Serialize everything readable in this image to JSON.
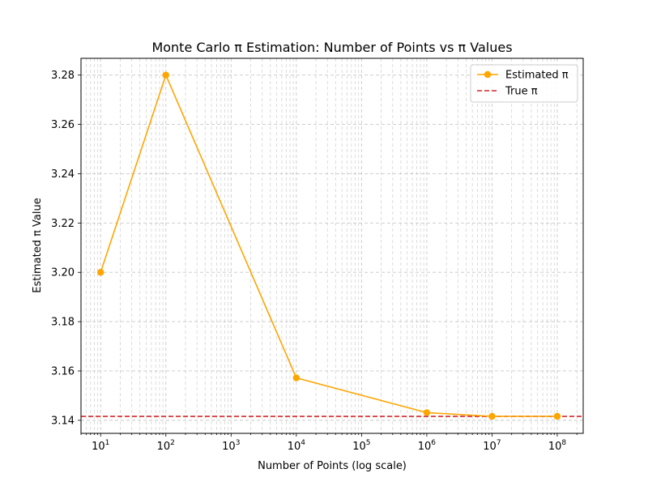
{
  "chart_data": {
    "type": "line",
    "title": "Monte Carlo π Estimation: Number of Points vs π Values",
    "xlabel": "Number of Points (log scale)",
    "ylabel": "Estimated π Value",
    "xscale": "log",
    "xlim": [
      5,
      250000000
    ],
    "ylim": [
      3.1347,
      3.2868
    ],
    "x_ticks": [
      10,
      100,
      1000,
      10000,
      100000,
      1000000,
      10000000,
      100000000
    ],
    "x_tick_bases": [
      "10",
      "10",
      "10",
      "10",
      "10",
      "10",
      "10",
      "10"
    ],
    "x_tick_exponents": [
      "1",
      "2",
      "3",
      "4",
      "5",
      "6",
      "7",
      "8"
    ],
    "y_ticks": [
      3.14,
      3.16,
      3.18,
      3.2,
      3.22,
      3.24,
      3.26,
      3.28
    ],
    "y_tick_labels": [
      "3.14",
      "3.16",
      "3.18",
      "3.20",
      "3.22",
      "3.24",
      "3.26",
      "3.28"
    ],
    "grid": true,
    "legend_position": "upper-right",
    "series": [
      {
        "name": "Estimated π",
        "color": "#ffa500",
        "marker": "circle",
        "x": [
          10,
          100,
          10000,
          1000000,
          10000000,
          100000000
        ],
        "y": [
          3.2,
          3.28,
          3.1572,
          3.1431,
          3.1416,
          3.1416
        ]
      }
    ],
    "reference_lines": [
      {
        "name": "True π",
        "color": "#d62728",
        "style": "dashed",
        "y": 3.14159
      }
    ]
  }
}
